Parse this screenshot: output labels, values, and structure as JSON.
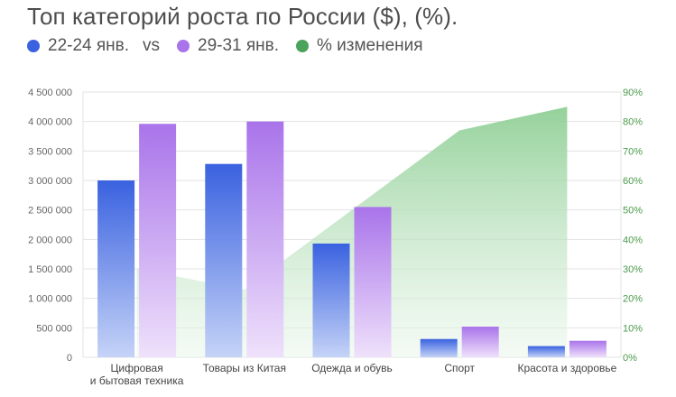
{
  "title": "Топ категорий роста по России ($), (%).",
  "legend": {
    "a": "22-24 янв.",
    "vs": "vs",
    "b": "29-31 янв.",
    "c": "% изменения"
  },
  "colors": {
    "series_a": "#3a62e0",
    "series_b": "#a974ea",
    "change": "#4aa35a"
  },
  "chart_data": {
    "type": "bar",
    "title": "Топ категорий роста по России ($), (%).",
    "categories": [
      [
        "Цифровая",
        "и бытовая техника"
      ],
      [
        "Товары из Китая"
      ],
      [
        "Одежда и обувь"
      ],
      [
        "Спорт"
      ],
      [
        "Красота и здоровье"
      ]
    ],
    "series": [
      {
        "name": "22-24 янв.",
        "axis": "left",
        "values": [
          3000000,
          3280000,
          1930000,
          310000,
          190000
        ]
      },
      {
        "name": "29-31 янв.",
        "axis": "left",
        "values": [
          3960000,
          4000000,
          2550000,
          520000,
          280000
        ]
      },
      {
        "name": "% изменения",
        "axis": "right",
        "type": "area",
        "values": [
          30,
          23,
          50,
          77,
          85
        ]
      }
    ],
    "y_left": {
      "min": 0,
      "max": 4500000,
      "ticks": [
        "0",
        "500 000",
        "1 000 000",
        "1 500 000",
        "2 000 000",
        "2 500 000",
        "3 000 000",
        "3 500 000",
        "4 000 000",
        "4 500 000"
      ]
    },
    "y_right": {
      "min": 0,
      "max": 90,
      "ticks": [
        "0%",
        "10%",
        "20%",
        "30%",
        "40%",
        "50%",
        "60%",
        "70%",
        "80%",
        "90%"
      ]
    },
    "grid": true,
    "legend_position": "top-left"
  }
}
